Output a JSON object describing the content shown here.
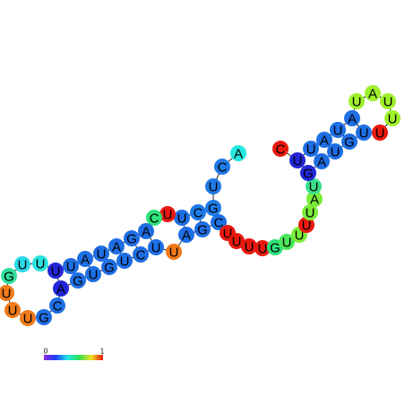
{
  "nodes": [
    {
      "label": "A",
      "color": "#25e8e0"
    },
    {
      "label": "C",
      "color": "#1e7ae6"
    },
    {
      "label": "U",
      "color": "#1e7ae6"
    },
    {
      "label": "G",
      "color": "#1e7ae6"
    },
    {
      "label": "C",
      "color": "#1e7ae6"
    },
    {
      "label": "U",
      "color": "#1e6ee4"
    },
    {
      "label": "U",
      "color": "#e8190e"
    },
    {
      "label": "C",
      "color": "#2fe07a"
    },
    {
      "label": "A",
      "color": "#1e6ee4"
    },
    {
      "label": "G",
      "color": "#1e6ee4"
    },
    {
      "label": "A",
      "color": "#1e6ee4"
    },
    {
      "label": "U",
      "color": "#1e6ee4"
    },
    {
      "label": "A",
      "color": "#1e6ee4"
    },
    {
      "label": "U",
      "color": "#1e6ee4"
    },
    {
      "label": "U",
      "color": "#2226d8"
    },
    {
      "label": "U",
      "color": "#27e4e0"
    },
    {
      "label": "U",
      "color": "#27d8e8"
    },
    {
      "label": "G",
      "color": "#2ee09a"
    },
    {
      "label": "U",
      "color": "#f07a1a"
    },
    {
      "label": "U",
      "color": "#f07a1a"
    },
    {
      "label": "U",
      "color": "#f07a1a"
    },
    {
      "label": "G",
      "color": "#1e6ee4"
    },
    {
      "label": "C",
      "color": "#1e6ee4"
    },
    {
      "label": "A",
      "color": "#2226d8"
    },
    {
      "label": "G",
      "color": "#1e6ee4"
    },
    {
      "label": "U",
      "color": "#1e6ee4"
    },
    {
      "label": "G",
      "color": "#1e6ee4"
    },
    {
      "label": "U",
      "color": "#1e6ee4"
    },
    {
      "label": "C",
      "color": "#1e6ee4"
    },
    {
      "label": "U",
      "color": "#1e6ee4"
    },
    {
      "label": "U",
      "color": "#f07a1a"
    },
    {
      "label": "A",
      "color": "#1e6ee4"
    },
    {
      "label": "G",
      "color": "#1e6ee4"
    },
    {
      "label": "C",
      "color": "#1e6ee4"
    },
    {
      "label": "U",
      "color": "#e8190e"
    },
    {
      "label": "U",
      "color": "#e8190e"
    },
    {
      "label": "U",
      "color": "#e8190e"
    },
    {
      "label": "U",
      "color": "#e8190e"
    },
    {
      "label": "G",
      "color": "#2ee07a"
    },
    {
      "label": "U",
      "color": "#4ae85a"
    },
    {
      "label": "U",
      "color": "#7aec3a"
    },
    {
      "label": "U",
      "color": "#e8190e"
    },
    {
      "label": "U",
      "color": "#7aec3a"
    },
    {
      "label": "A",
      "color": "#7aec3a"
    },
    {
      "label": "U",
      "color": "#3ae08a"
    },
    {
      "label": "G",
      "color": "#2226d8"
    },
    {
      "label": "A",
      "color": "#1e6ee4"
    },
    {
      "label": "U",
      "color": "#1e6ee4"
    },
    {
      "label": "G",
      "color": "#1e6ee4"
    },
    {
      "label": "U",
      "color": "#1e6ee4"
    },
    {
      "label": "U",
      "color": "#e8190e"
    },
    {
      "label": "U",
      "color": "#9ef02a"
    },
    {
      "label": "U",
      "color": "#9ef02a"
    },
    {
      "label": "A",
      "color": "#9ef02a"
    },
    {
      "label": "U",
      "color": "#9ef02a"
    },
    {
      "label": "A",
      "color": "#1e6ee4"
    },
    {
      "label": "U",
      "color": "#1e6ee4"
    },
    {
      "label": "A",
      "color": "#1e6ee4"
    },
    {
      "label": "U",
      "color": "#1e6ee4"
    },
    {
      "label": "U",
      "color": "#2226d8"
    },
    {
      "label": "C",
      "color": "#e8190e"
    }
  ],
  "scale": {
    "min_label": "0",
    "max_label": "1"
  }
}
